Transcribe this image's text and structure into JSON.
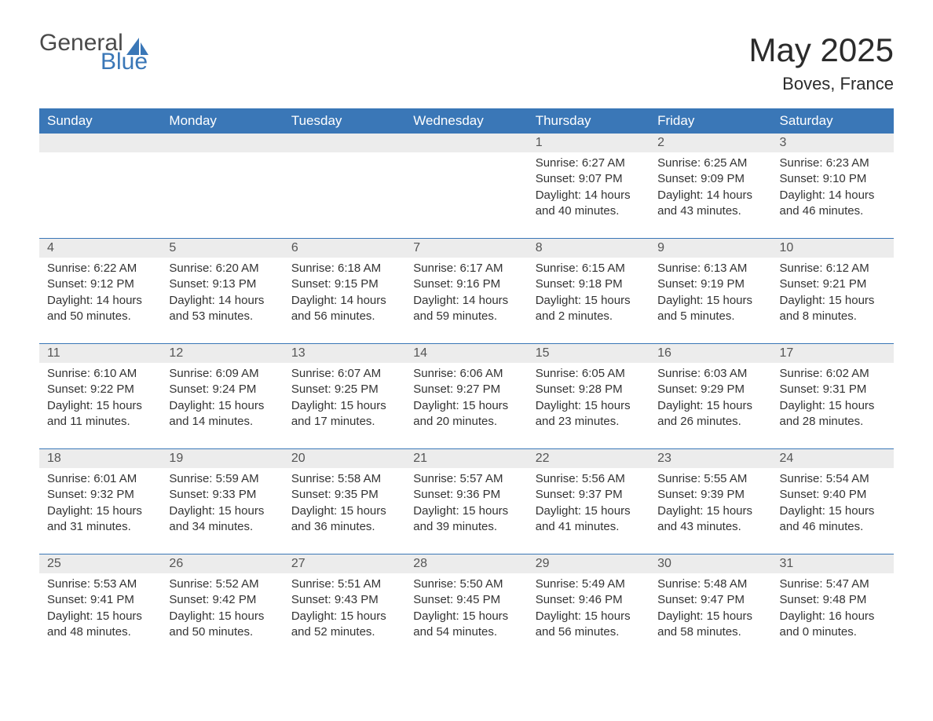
{
  "logo": {
    "general": "General",
    "blue": "Blue",
    "sail_color": "#3a77b7",
    "text_gray": "#4a4a4a"
  },
  "header": {
    "title": "May 2025",
    "location": "Boves, France"
  },
  "colors": {
    "header_bg": "#3a77b7",
    "header_text": "#ffffff",
    "daynum_bg": "#ececec",
    "daynum_text": "#555555",
    "body_text": "#333333",
    "rule": "#3a77b7",
    "page_bg": "#ffffff"
  },
  "day_labels": [
    "Sunday",
    "Monday",
    "Tuesday",
    "Wednesday",
    "Thursday",
    "Friday",
    "Saturday"
  ],
  "weeks": [
    [
      null,
      null,
      null,
      null,
      {
        "n": "1",
        "sunrise": "6:27 AM",
        "sunset": "9:07 PM",
        "day_h": 14,
        "day_m": 40
      },
      {
        "n": "2",
        "sunrise": "6:25 AM",
        "sunset": "9:09 PM",
        "day_h": 14,
        "day_m": 43
      },
      {
        "n": "3",
        "sunrise": "6:23 AM",
        "sunset": "9:10 PM",
        "day_h": 14,
        "day_m": 46
      }
    ],
    [
      {
        "n": "4",
        "sunrise": "6:22 AM",
        "sunset": "9:12 PM",
        "day_h": 14,
        "day_m": 50
      },
      {
        "n": "5",
        "sunrise": "6:20 AM",
        "sunset": "9:13 PM",
        "day_h": 14,
        "day_m": 53
      },
      {
        "n": "6",
        "sunrise": "6:18 AM",
        "sunset": "9:15 PM",
        "day_h": 14,
        "day_m": 56
      },
      {
        "n": "7",
        "sunrise": "6:17 AM",
        "sunset": "9:16 PM",
        "day_h": 14,
        "day_m": 59
      },
      {
        "n": "8",
        "sunrise": "6:15 AM",
        "sunset": "9:18 PM",
        "day_h": 15,
        "day_m": 2
      },
      {
        "n": "9",
        "sunrise": "6:13 AM",
        "sunset": "9:19 PM",
        "day_h": 15,
        "day_m": 5
      },
      {
        "n": "10",
        "sunrise": "6:12 AM",
        "sunset": "9:21 PM",
        "day_h": 15,
        "day_m": 8
      }
    ],
    [
      {
        "n": "11",
        "sunrise": "6:10 AM",
        "sunset": "9:22 PM",
        "day_h": 15,
        "day_m": 11
      },
      {
        "n": "12",
        "sunrise": "6:09 AM",
        "sunset": "9:24 PM",
        "day_h": 15,
        "day_m": 14
      },
      {
        "n": "13",
        "sunrise": "6:07 AM",
        "sunset": "9:25 PM",
        "day_h": 15,
        "day_m": 17
      },
      {
        "n": "14",
        "sunrise": "6:06 AM",
        "sunset": "9:27 PM",
        "day_h": 15,
        "day_m": 20
      },
      {
        "n": "15",
        "sunrise": "6:05 AM",
        "sunset": "9:28 PM",
        "day_h": 15,
        "day_m": 23
      },
      {
        "n": "16",
        "sunrise": "6:03 AM",
        "sunset": "9:29 PM",
        "day_h": 15,
        "day_m": 26
      },
      {
        "n": "17",
        "sunrise": "6:02 AM",
        "sunset": "9:31 PM",
        "day_h": 15,
        "day_m": 28
      }
    ],
    [
      {
        "n": "18",
        "sunrise": "6:01 AM",
        "sunset": "9:32 PM",
        "day_h": 15,
        "day_m": 31
      },
      {
        "n": "19",
        "sunrise": "5:59 AM",
        "sunset": "9:33 PM",
        "day_h": 15,
        "day_m": 34
      },
      {
        "n": "20",
        "sunrise": "5:58 AM",
        "sunset": "9:35 PM",
        "day_h": 15,
        "day_m": 36
      },
      {
        "n": "21",
        "sunrise": "5:57 AM",
        "sunset": "9:36 PM",
        "day_h": 15,
        "day_m": 39
      },
      {
        "n": "22",
        "sunrise": "5:56 AM",
        "sunset": "9:37 PM",
        "day_h": 15,
        "day_m": 41
      },
      {
        "n": "23",
        "sunrise": "5:55 AM",
        "sunset": "9:39 PM",
        "day_h": 15,
        "day_m": 43
      },
      {
        "n": "24",
        "sunrise": "5:54 AM",
        "sunset": "9:40 PM",
        "day_h": 15,
        "day_m": 46
      }
    ],
    [
      {
        "n": "25",
        "sunrise": "5:53 AM",
        "sunset": "9:41 PM",
        "day_h": 15,
        "day_m": 48
      },
      {
        "n": "26",
        "sunrise": "5:52 AM",
        "sunset": "9:42 PM",
        "day_h": 15,
        "day_m": 50
      },
      {
        "n": "27",
        "sunrise": "5:51 AM",
        "sunset": "9:43 PM",
        "day_h": 15,
        "day_m": 52
      },
      {
        "n": "28",
        "sunrise": "5:50 AM",
        "sunset": "9:45 PM",
        "day_h": 15,
        "day_m": 54
      },
      {
        "n": "29",
        "sunrise": "5:49 AM",
        "sunset": "9:46 PM",
        "day_h": 15,
        "day_m": 56
      },
      {
        "n": "30",
        "sunrise": "5:48 AM",
        "sunset": "9:47 PM",
        "day_h": 15,
        "day_m": 58
      },
      {
        "n": "31",
        "sunrise": "5:47 AM",
        "sunset": "9:48 PM",
        "day_h": 16,
        "day_m": 0
      }
    ]
  ],
  "labels": {
    "sunrise": "Sunrise:",
    "sunset": "Sunset:",
    "daylight": "Daylight:",
    "hours": "hours",
    "and": "and",
    "minutes": "minutes."
  }
}
